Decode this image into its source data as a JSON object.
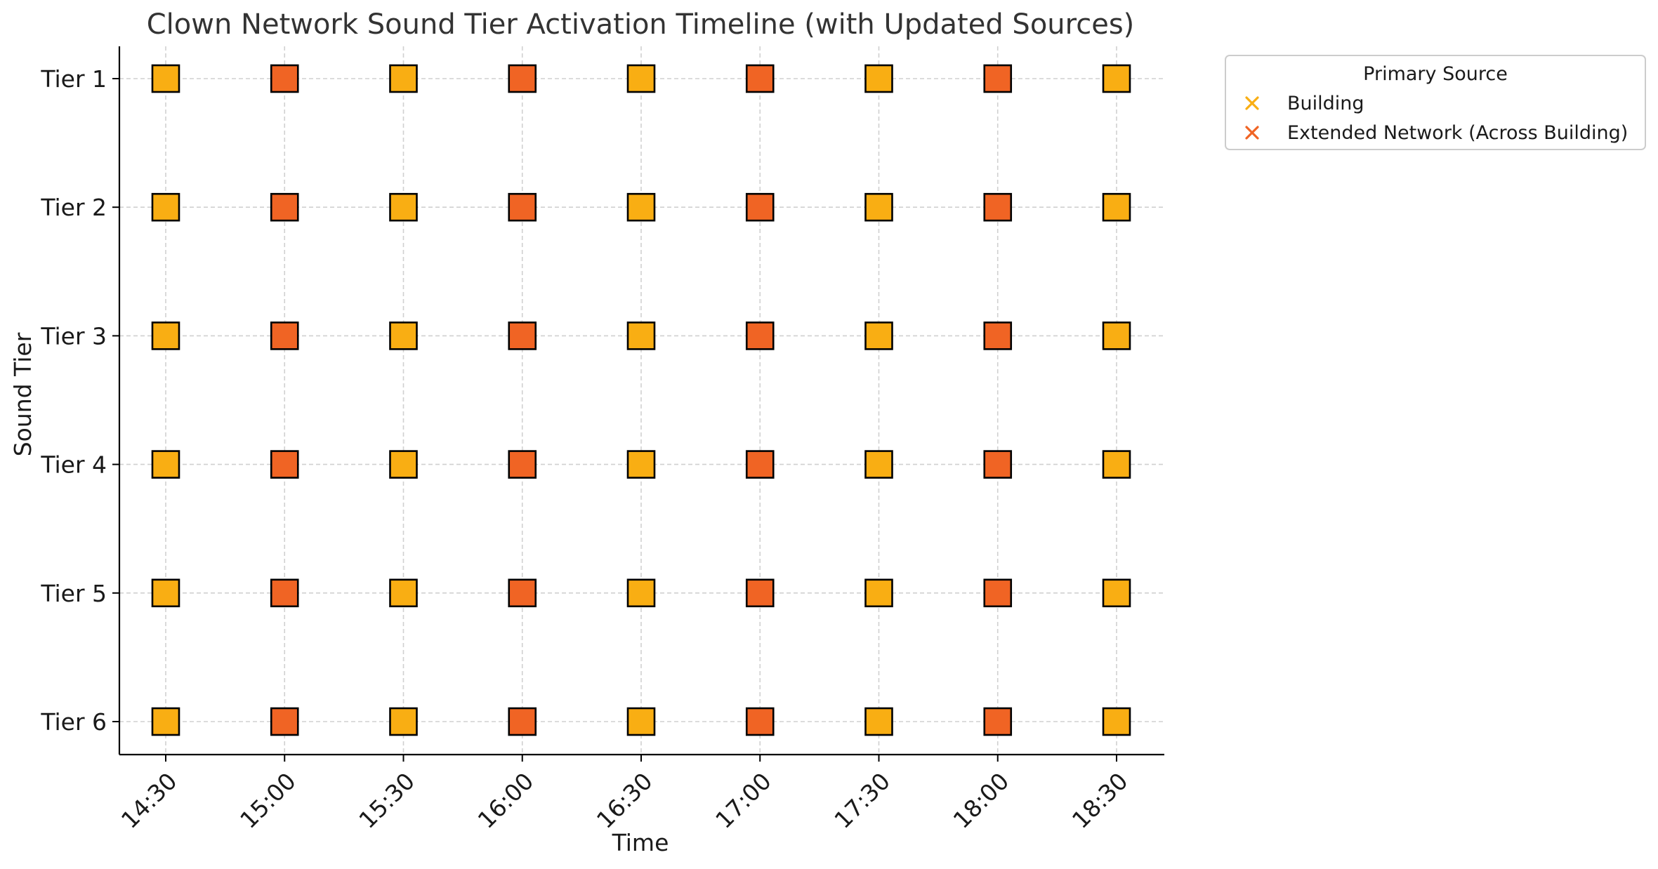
{
  "chart_data": {
    "type": "scatter",
    "title": "Clown Network Sound Tier Activation Timeline (with Updated Sources)",
    "xlabel": "Time",
    "ylabel": "Sound Tier",
    "x_ticks": [
      "14:30",
      "15:00",
      "15:30",
      "16:00",
      "16:30",
      "17:00",
      "17:30",
      "18:00",
      "18:30"
    ],
    "y_ticks": [
      "Tier 1",
      "Tier 2",
      "Tier 3",
      "Tier 4",
      "Tier 5",
      "Tier 6"
    ],
    "grid": true,
    "legend": {
      "title": "Primary Source",
      "placement": "outside upper right",
      "entries": [
        "Building",
        "Extended Network (Across Building)"
      ]
    },
    "series": [
      {
        "name": "Building",
        "color": "#F9AE13",
        "marker": "square",
        "x": [
          "14:30",
          "15:30",
          "16:30",
          "17:30",
          "18:30"
        ],
        "tiers": [
          "Tier 1",
          "Tier 2",
          "Tier 3",
          "Tier 4",
          "Tier 5",
          "Tier 6"
        ]
      },
      {
        "name": "Extended Network (Across Building)",
        "color": "#F06424",
        "marker": "square",
        "x": [
          "15:00",
          "16:00",
          "17:00",
          "18:00"
        ],
        "tiers": [
          "Tier 1",
          "Tier 2",
          "Tier 3",
          "Tier 4",
          "Tier 5",
          "Tier 6"
        ]
      }
    ]
  }
}
